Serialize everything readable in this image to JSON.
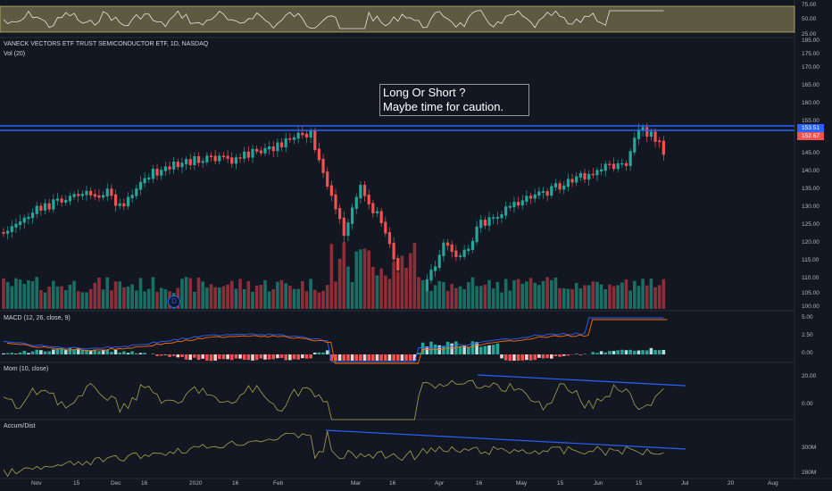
{
  "colors": {
    "up": "#26a69a",
    "down": "#ef5350",
    "vol_up": "#1b6e63",
    "vol_down": "#8c2f39",
    "rsi_band": "#e7d77a",
    "rsi_line": "#e5e5e5",
    "macd": "#2962ff",
    "signal": "#ff6d00",
    "mom": "#a8a34a",
    "ad": "#a8a34a",
    "trend": "#2962ff",
    "resistance": "#2962ff"
  },
  "rsi": {
    "axis": [
      "75.00",
      "50.00",
      "25.00"
    ]
  },
  "main": {
    "title": "VANECK VECTORS ETF TRUST SEMICONDUCTOR ETF, 1D, NASDAQ",
    "vol_label": "Vol (20)",
    "price_axis": [
      "185.00",
      "175.00",
      "170.00",
      "165.00",
      "160.00",
      "155.00",
      "145.00",
      "140.00",
      "135.00",
      "130.00",
      "125.00",
      "120.00",
      "115.00",
      "110.00",
      "105.00",
      "100.00"
    ],
    "price_tag_1": "153.51",
    "price_tag_2": "152.67",
    "note_line1": "Long Or Short ?",
    "note_line2": "Maybe time for caution.",
    "badge": "D"
  },
  "macd": {
    "label": "MACD (12, 26, close, 9)",
    "axis": [
      "5.00",
      "2.50",
      "0.00"
    ]
  },
  "mom": {
    "label": "Mom (10, close)",
    "axis": [
      "20.00",
      "0.00"
    ]
  },
  "ad": {
    "label": "Accum/Dist",
    "axis": [
      "300M",
      "280M"
    ]
  },
  "xaxis": [
    "Nov",
    "15",
    "Dec",
    "16",
    "2020",
    "16",
    "Feb",
    "Mar",
    "16",
    "Apr",
    "16",
    "May",
    "15",
    "Jun",
    "15",
    "Jul",
    "20",
    "Aug"
  ]
}
